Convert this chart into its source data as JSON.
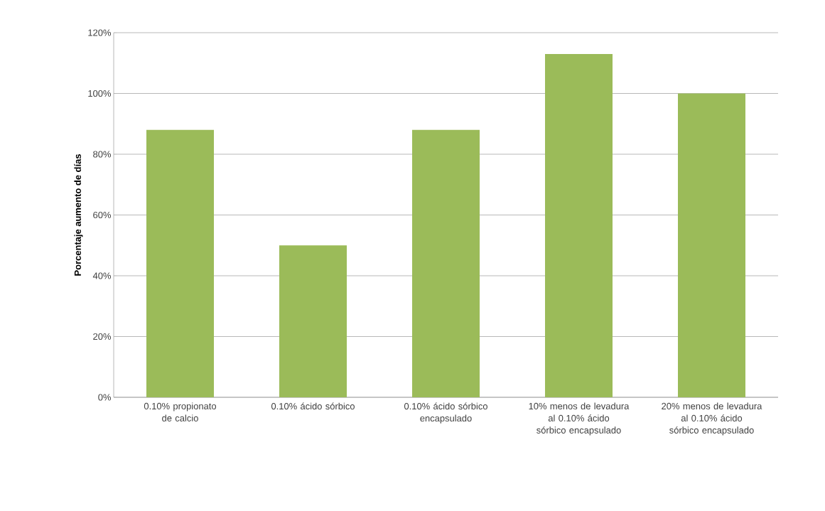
{
  "chart_data": {
    "type": "bar",
    "ylabel": "Porcentaje aumento de días",
    "categories": [
      "0.10% propionato de calcio",
      "0.10% ácido sórbico",
      "0.10% ácido sórbico encapsulado",
      "10% menos de levadura al 0.10% ácido sórbico encapsulado",
      "20% menos de levadura al 0.10% ácido sórbico encapsulado"
    ],
    "values": [
      88,
      50,
      88,
      113,
      100
    ],
    "color": "#9bbb59",
    "ylim": [
      0,
      120
    ],
    "yticks": [
      {
        "value": 0,
        "label": "0%"
      },
      {
        "value": 20,
        "label": "20%"
      },
      {
        "value": 40,
        "label": "40%"
      },
      {
        "value": 60,
        "label": "60%"
      },
      {
        "value": 80,
        "label": "80%"
      },
      {
        "value": 100,
        "label": "100%"
      },
      {
        "value": 120,
        "label": "120%"
      }
    ],
    "grid": "y"
  }
}
